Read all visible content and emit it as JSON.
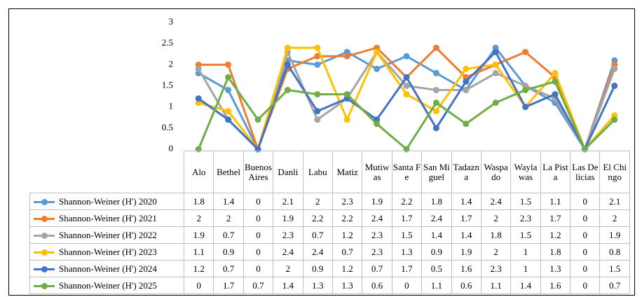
{
  "chart_data": {
    "type": "line",
    "categories": [
      "Alo",
      "Bethel",
      "Buenos Aires",
      "Danli",
      "Labu",
      "Matiz",
      "Mutiwas",
      "Santa Fe",
      "San Miguel",
      "Tadazna",
      "Waspado",
      "Waylawas",
      "La Pista",
      "Las Delicias",
      "El Chingo"
    ],
    "series": [
      {
        "name": "Shannon-Weiner (H') 2020",
        "color": "#5b9bd5",
        "values": [
          1.8,
          1.4,
          0,
          2.1,
          2,
          2.3,
          1.9,
          2.2,
          1.8,
          1.4,
          2.4,
          1.5,
          1.1,
          0,
          2.1
        ]
      },
      {
        "name": "Shannon-Weiner (H') 2021",
        "color": "#ed7d31",
        "values": [
          2,
          2,
          0,
          1.9,
          2.2,
          2.2,
          2.4,
          1.7,
          2.4,
          1.7,
          2,
          2.3,
          1.7,
          0,
          2
        ]
      },
      {
        "name": "Shannon-Weiner (H') 2022",
        "color": "#a5a5a5",
        "values": [
          1.9,
          0.7,
          0,
          2.3,
          0.7,
          1.2,
          2.3,
          1.5,
          1.4,
          1.4,
          1.8,
          1.5,
          1.2,
          0,
          1.9
        ]
      },
      {
        "name": "Shannon-Weiner (H') 2023",
        "color": "#ffc000",
        "values": [
          1.1,
          0.9,
          0,
          2.4,
          2.4,
          0.7,
          2.3,
          1.3,
          0.9,
          1.9,
          2,
          1,
          1.8,
          0,
          0.8
        ]
      },
      {
        "name": "Shannon-Weiner (H') 2024",
        "color": "#4472c4",
        "values": [
          1.2,
          0.7,
          0,
          2,
          0.9,
          1.2,
          0.7,
          1.7,
          0.5,
          1.6,
          2.3,
          1,
          1.3,
          0,
          1.5
        ]
      },
      {
        "name": "Shannon-Weiner (H') 2025",
        "color": "#70ad47",
        "values": [
          0,
          1.7,
          0.7,
          1.4,
          1.3,
          1.3,
          0.6,
          0,
          1.1,
          0.6,
          1.1,
          1.4,
          1.6,
          0,
          0.7
        ]
      }
    ],
    "ylim": [
      0,
      3
    ],
    "yticks": [
      0,
      0.5,
      1,
      1.5,
      2,
      2.5,
      3
    ]
  }
}
